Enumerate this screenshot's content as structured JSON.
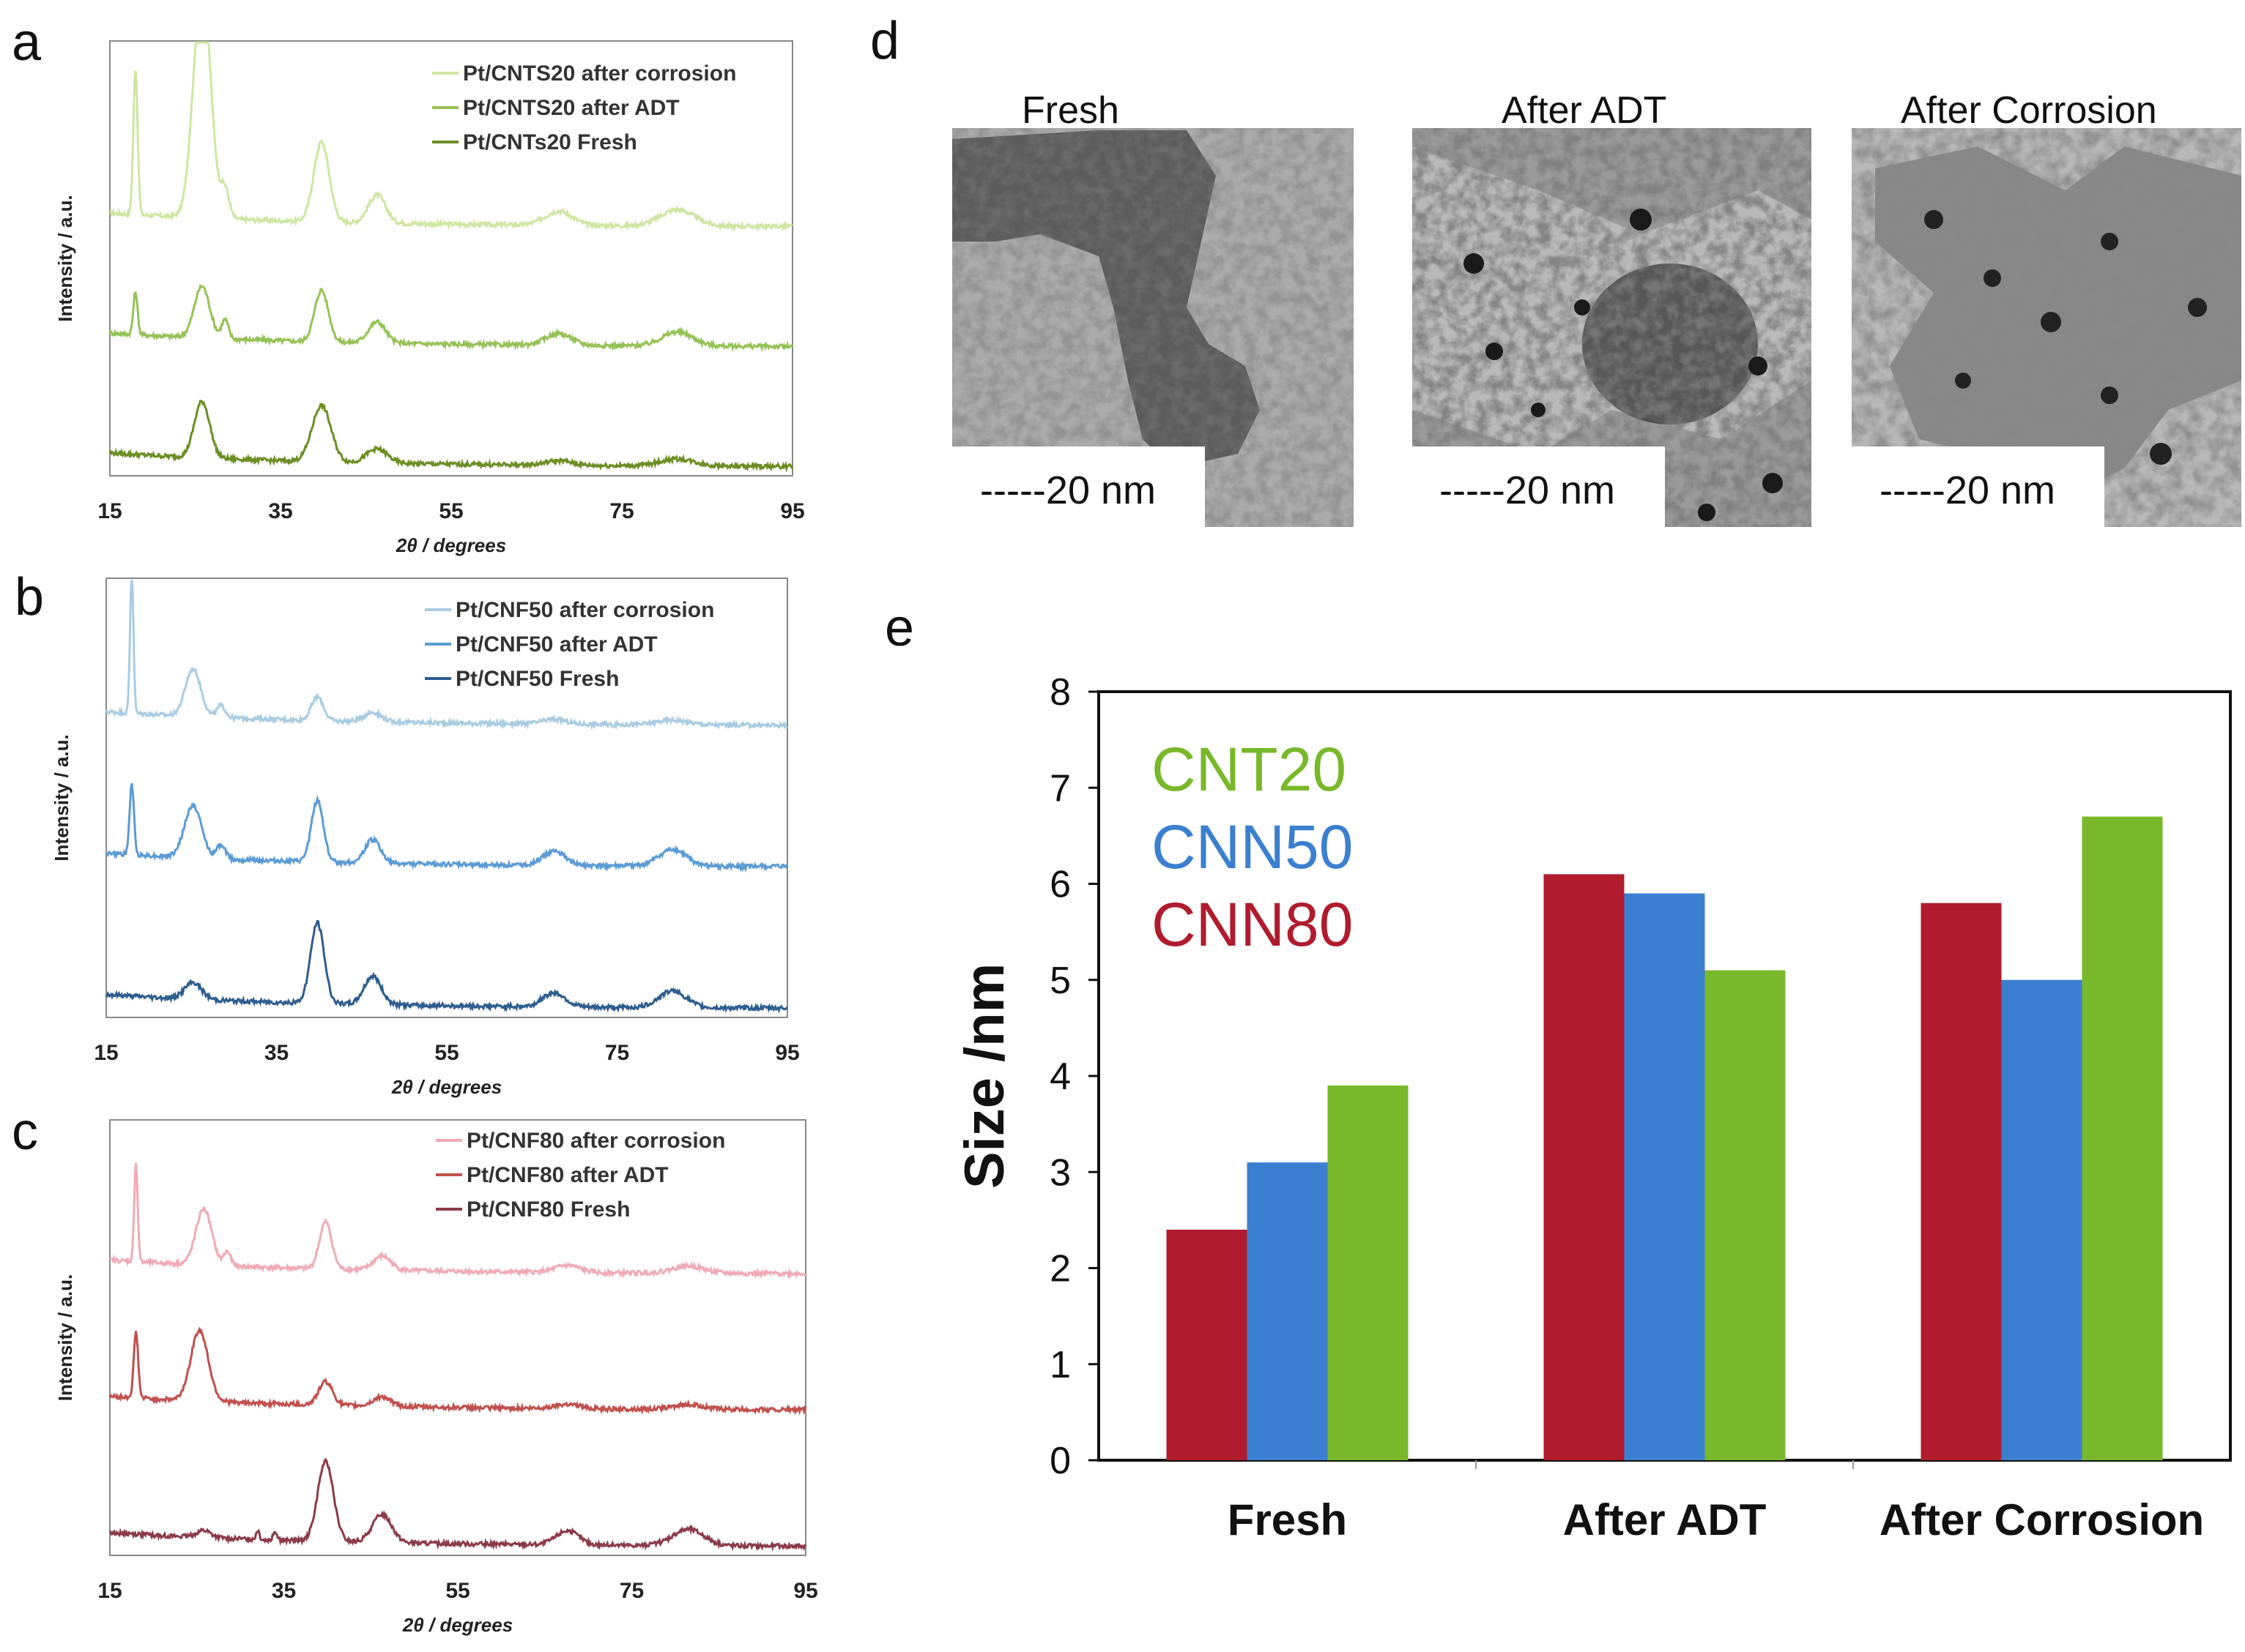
{
  "panels": {
    "a": "a",
    "b": "b",
    "c": "c",
    "d": "d",
    "e": "e"
  },
  "chart_data": [
    {
      "type": "line",
      "panel": "a",
      "xlabel": "2θ / degrees",
      "ylabel": "Intensity / a.u.",
      "xlim": [
        15,
        95
      ],
      "xticks": [
        "15",
        "35",
        "55",
        "75",
        "95"
      ],
      "legend_position": "top-right",
      "series": [
        {
          "name": "Pt/CNTS20 after corrosion",
          "color": "#cfe6a2",
          "offset": 0.6,
          "peaks": [
            [
              18,
              0.62,
              0.25
            ],
            [
              25.8,
              1.0,
              1.0
            ],
            [
              28.5,
              0.12,
              0.5
            ],
            [
              39.8,
              0.34,
              0.9
            ],
            [
              46.3,
              0.12,
              1.0
            ],
            [
              67.6,
              0.06,
              1.6
            ],
            [
              81.5,
              0.07,
              2.0
            ]
          ]
        },
        {
          "name": "Pt/CNTS20 after ADT",
          "color": "#95c256",
          "offset": 0.3,
          "peaks": [
            [
              18,
              0.18,
              0.25
            ],
            [
              25.8,
              0.22,
              0.9
            ],
            [
              28.5,
              0.08,
              0.4
            ],
            [
              39.8,
              0.22,
              0.8
            ],
            [
              46.3,
              0.09,
              1.0
            ],
            [
              67.6,
              0.05,
              1.5
            ],
            [
              81.5,
              0.06,
              1.8
            ]
          ]
        },
        {
          "name": "Pt/CNTs20 Fresh",
          "color": "#6b8e23",
          "offset": 0.0,
          "peaks": [
            [
              25.8,
              0.24,
              0.9
            ],
            [
              39.8,
              0.24,
              1.1
            ],
            [
              46.3,
              0.06,
              1.2
            ],
            [
              67.6,
              0.02,
              1.5
            ],
            [
              81.5,
              0.03,
              2.0
            ]
          ]
        }
      ]
    },
    {
      "type": "line",
      "panel": "b",
      "xlabel": "2θ / degrees",
      "ylabel": "Intensity / a.u.",
      "xlim": [
        15,
        95
      ],
      "xticks": [
        "15",
        "35",
        "55",
        "75",
        "95"
      ],
      "legend_position": "top-right",
      "series": [
        {
          "name": "Pt/CNF50 after corrosion",
          "color": "#a9cce3",
          "offset": 0.7,
          "peaks": [
            [
              18,
              0.6,
              0.2
            ],
            [
              25.2,
              0.2,
              0.9
            ],
            [
              28.5,
              0.05,
              0.5
            ],
            [
              39.8,
              0.1,
              0.7
            ],
            [
              46.3,
              0.04,
              1.0
            ],
            [
              67.6,
              0.02,
              1.4
            ],
            [
              81.5,
              0.02,
              1.8
            ]
          ]
        },
        {
          "name": "Pt/CNF50 after ADT",
          "color": "#5b9bd5",
          "offset": 0.35,
          "peaks": [
            [
              18,
              0.3,
              0.25
            ],
            [
              25.2,
              0.22,
              1.0
            ],
            [
              28.5,
              0.06,
              0.5
            ],
            [
              39.8,
              0.26,
              0.7
            ],
            [
              46.3,
              0.1,
              0.9
            ],
            [
              67.6,
              0.06,
              1.3
            ],
            [
              81.5,
              0.07,
              1.6
            ]
          ]
        },
        {
          "name": "Pt/CNF50 Fresh",
          "color": "#2e5d8f",
          "offset": 0.0,
          "peaks": [
            [
              25.2,
              0.07,
              1.0
            ],
            [
              39.8,
              0.34,
              0.8
            ],
            [
              46.3,
              0.12,
              1.0
            ],
            [
              67.6,
              0.06,
              1.3
            ],
            [
              81.5,
              0.07,
              1.6
            ]
          ]
        }
      ]
    },
    {
      "type": "line",
      "panel": "c",
      "xlabel": "2θ / degrees",
      "ylabel": "Intensity / a.u.",
      "xlim": [
        15,
        95
      ],
      "xticks": [
        "15",
        "35",
        "55",
        "75",
        "95"
      ],
      "legend_position": "top-right",
      "series": [
        {
          "name": "Pt/CNF80 after corrosion",
          "color": "#f0aab5",
          "offset": 0.68,
          "peaks": [
            [
              18,
              0.42,
              0.2
            ],
            [
              25.8,
              0.24,
              0.9
            ],
            [
              28.5,
              0.06,
              0.4
            ],
            [
              39.8,
              0.2,
              0.7
            ],
            [
              46.3,
              0.06,
              1.0
            ],
            [
              67.6,
              0.03,
              1.4
            ],
            [
              81.5,
              0.03,
              1.8
            ]
          ]
        },
        {
          "name": "Pt/CNF80 after ADT",
          "color": "#c0504d",
          "offset": 0.34,
          "peaks": [
            [
              18,
              0.28,
              0.25
            ],
            [
              25.3,
              0.3,
              1.0
            ],
            [
              39.8,
              0.1,
              0.8
            ],
            [
              46.3,
              0.04,
              1.0
            ],
            [
              67.6,
              0.02,
              1.4
            ],
            [
              81.5,
              0.02,
              1.8
            ]
          ]
        },
        {
          "name": "Pt/CNF80 Fresh",
          "color": "#8b3a48",
          "offset": 0.0,
          "peaks": [
            [
              25.8,
              0.03,
              0.8
            ],
            [
              32,
              0.04,
              0.2
            ],
            [
              34,
              0.04,
              0.2
            ],
            [
              39.8,
              0.34,
              0.9
            ],
            [
              46.3,
              0.12,
              1.1
            ],
            [
              67.6,
              0.06,
              1.3
            ],
            [
              81.5,
              0.07,
              1.8
            ]
          ]
        }
      ]
    },
    {
      "type": "bar",
      "panel": "e",
      "ylabel": "Size /nm",
      "ylim": [
        0,
        8
      ],
      "yticks": [
        "0",
        "1",
        "2",
        "3",
        "4",
        "5",
        "6",
        "7",
        "8"
      ],
      "categories": [
        "Fresh",
        "After ADT",
        "After Corrosion"
      ],
      "legend_position": "top-left",
      "series": [
        {
          "name": "CNN80",
          "color": "#b01c2e",
          "values": [
            2.4,
            6.1,
            5.8
          ]
        },
        {
          "name": "CNN50",
          "color": "#3b7fd0",
          "values": [
            3.1,
            5.9,
            5.0
          ]
        },
        {
          "name": "CNT20",
          "color": "#78b82a",
          "values": [
            3.9,
            5.1,
            6.7
          ]
        }
      ],
      "legend_order": [
        {
          "name": "CNT20",
          "color": "#78b82a"
        },
        {
          "name": "CNN50",
          "color": "#3b7fd0"
        },
        {
          "name": "CNN80",
          "color": "#b01c2e"
        }
      ]
    }
  ],
  "tem": {
    "images": [
      {
        "title": "Fresh",
        "scale": "-----20 nm"
      },
      {
        "title": "After ADT",
        "scale": "-----20 nm"
      },
      {
        "title": "After Corrosion",
        "scale": "-----20 nm"
      }
    ]
  }
}
